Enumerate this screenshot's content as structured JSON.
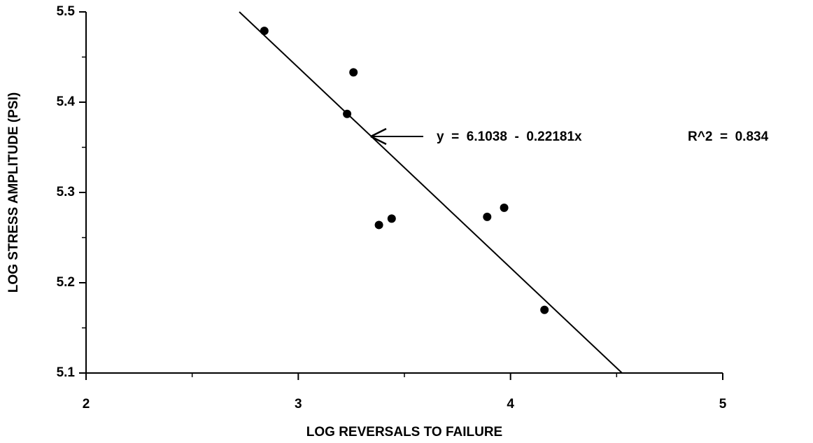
{
  "chart_data": {
    "type": "scatter",
    "x_label": "LOG REVERSALS TO FAILURE",
    "y_label": "LOG STRESS AMPLITUDE (PSI)",
    "annotations": [
      "y  =  6.1038  -  0.22181x",
      "R^2  =  0.834"
    ],
    "fit": {
      "intercept": 6.1038,
      "slope": -0.22181
    },
    "x": [
      2.84,
      3.26,
      3.23,
      3.38,
      3.44,
      3.89,
      3.97,
      4.16
    ],
    "values": [
      5.479,
      5.433,
      5.387,
      5.264,
      5.271,
      5.273,
      5.283,
      5.17
    ],
    "color": "#000000",
    "xlim": [
      2,
      5
    ],
    "ylim": [
      5.1,
      5.5
    ],
    "xticks": [
      2,
      3,
      4,
      5
    ],
    "yticks": [
      5.1,
      5.2,
      5.3,
      5.4,
      5.5
    ]
  }
}
